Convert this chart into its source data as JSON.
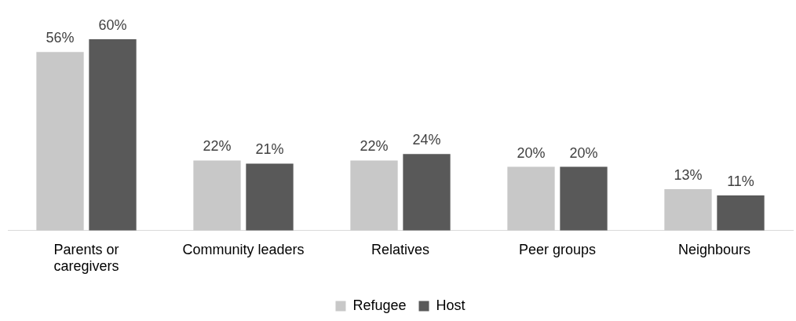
{
  "chart_data": {
    "type": "bar",
    "categories": [
      "Parents or caregivers",
      "Community leaders",
      "Relatives",
      "Peer groups",
      "Neighbours"
    ],
    "series": [
      {
        "name": "Refugee",
        "color": "#c8c8c8",
        "values": [
          56,
          22,
          22,
          20,
          13
        ],
        "value_labels": [
          "56%",
          "22%",
          "22%",
          "20%",
          "13%"
        ]
      },
      {
        "name": "Host",
        "color": "#595959",
        "values": [
          60,
          21,
          24,
          20,
          11
        ],
        "value_labels": [
          "60%",
          "21%",
          "24%",
          "20%",
          "11%"
        ]
      }
    ],
    "legend": "bottom",
    "grid": false
  }
}
